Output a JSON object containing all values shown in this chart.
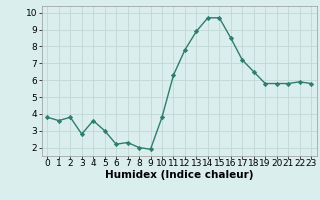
{
  "x": [
    0,
    1,
    2,
    3,
    4,
    5,
    6,
    7,
    8,
    9,
    10,
    11,
    12,
    13,
    14,
    15,
    16,
    17,
    18,
    19,
    20,
    21,
    22,
    23
  ],
  "y": [
    3.8,
    3.6,
    3.8,
    2.8,
    3.6,
    3.0,
    2.2,
    2.3,
    2.0,
    1.9,
    3.8,
    6.3,
    7.8,
    8.9,
    9.7,
    9.7,
    8.5,
    7.2,
    6.5,
    5.8,
    5.8,
    5.8,
    5.9,
    5.8
  ],
  "line_color": "#2e7d6e",
  "marker": "D",
  "markersize": 2.2,
  "linewidth": 1.0,
  "bg_color": "#daeeed",
  "grid_color": "#c2d8d5",
  "xlabel": "Humidex (Indice chaleur)",
  "xlabel_fontsize": 7.5,
  "xlabel_weight": "bold",
  "yticks": [
    2,
    3,
    4,
    5,
    6,
    7,
    8,
    9,
    10
  ],
  "xticks": [
    0,
    1,
    2,
    3,
    4,
    5,
    6,
    7,
    8,
    9,
    10,
    11,
    12,
    13,
    14,
    15,
    16,
    17,
    18,
    19,
    20,
    21,
    22,
    23
  ],
  "ylim": [
    1.5,
    10.4
  ],
  "xlim": [
    -0.5,
    23.5
  ],
  "tick_fontsize": 6.5
}
